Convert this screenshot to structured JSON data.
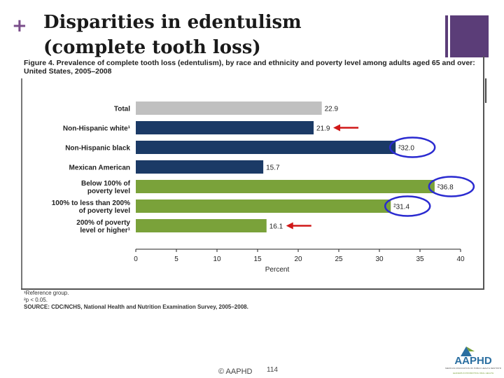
{
  "slide": {
    "plus_glyph": "+",
    "title_line1": "Disparities in edentulism",
    "title_line2": "(complete tooth loss)",
    "copyright": "© AAPHD",
    "page_number": "114"
  },
  "figure": {
    "caption": "Figure 4. Prevalence of complete tooth loss (edentulism), by race and ethnicity and poverty level among adults aged 65 and over: United States, 2005–2008",
    "footnote_ref": "¹Reference group.",
    "footnote_p": "²p < 0.05.",
    "source": "SOURCE: CDC/NCHS, National Health and Nutrition Examination Survey, 2005–2008."
  },
  "logo": {
    "text": "AAPHD",
    "tagline": "AMERICAN ASSOCIATION OF PUBLIC HEALTH DENTISTRY",
    "tagline2": "LEADERS IN PROMOTING ORAL HEALTH"
  },
  "colors": {
    "total": "#c0c0c0",
    "race": "#1b3a66",
    "poverty": "#7aa23a",
    "circle": "#2a2ad0",
    "arrow": "#d01818"
  },
  "chart_data": {
    "type": "bar",
    "orientation": "horizontal",
    "categories": [
      [
        "Total"
      ],
      [
        "Non-Hispanic white¹"
      ],
      [
        "Non-Hispanic black"
      ],
      [
        "Mexican American"
      ],
      [
        "Below 100% of",
        "poverty level"
      ],
      [
        "100% to less than 200%",
        "of poverty level"
      ],
      [
        "200% of poverty",
        "level or higher¹"
      ]
    ],
    "values": [
      22.9,
      21.9,
      32.0,
      15.7,
      36.8,
      31.4,
      16.1
    ],
    "value_labels": [
      "22.9",
      "21.9",
      "²32.0",
      "15.7",
      "²36.8",
      "²31.4",
      "16.1"
    ],
    "groups": [
      "total",
      "race",
      "race",
      "race",
      "poverty",
      "poverty",
      "poverty"
    ],
    "xlabel": "Percent",
    "xlim": [
      0,
      40
    ],
    "xticks": [
      0,
      5,
      10,
      15,
      20,
      25,
      30,
      35,
      40
    ],
    "circled": [
      2,
      4,
      5
    ],
    "arrows": [
      1,
      6
    ]
  }
}
